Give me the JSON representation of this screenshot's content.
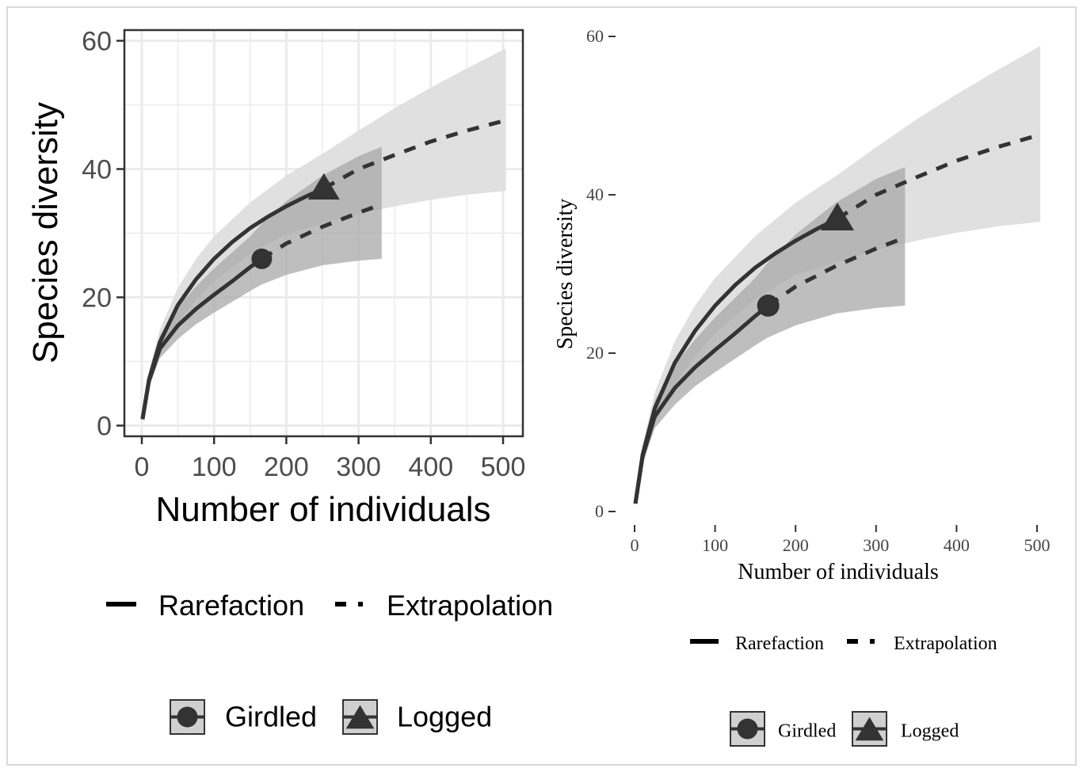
{
  "chart_data": [
    {
      "type": "line",
      "style": "ggplot-grey",
      "xlabel": "Number of individuals",
      "ylabel": "Species diversity",
      "xlim": [
        0,
        500
      ],
      "ylim": [
        0,
        60
      ],
      "x_ticks": [
        "0",
        "100",
        "200",
        "300",
        "400",
        "500"
      ],
      "y_ticks": [
        "0",
        "20",
        "40",
        "60"
      ],
      "grid": true,
      "legend_placement": "bottom",
      "linetype_legend": [
        {
          "label": "Rarefaction",
          "linetype": "solid"
        },
        {
          "label": "Extrapolation",
          "linetype": "dashed"
        }
      ],
      "shape_legend": [
        {
          "label": "Girdled",
          "shape": "circle"
        },
        {
          "label": "Logged",
          "shape": "triangle"
        }
      ],
      "series": [
        {
          "name": "Girdled",
          "observed": {
            "x": 166,
            "y": 26
          },
          "rarefaction": {
            "x": [
              1,
              10,
              25,
              50,
              75,
              100,
              125,
              150,
              166
            ],
            "y": [
              1,
              7,
              12,
              15.6,
              18.2,
              20.4,
              22.5,
              24.7,
              26
            ]
          },
          "extrapolation": {
            "x": [
              166,
              200,
              250,
              300,
              332
            ],
            "y": [
              26,
              28.4,
              31,
              33.2,
              34.5
            ]
          },
          "ci_upper": {
            "x": [
              1,
              10,
              25,
              50,
              75,
              100,
              125,
              150,
              166,
              200,
              250,
              300,
              332
            ],
            "y": [
              1,
              8,
              14,
              18.5,
              21.7,
              24.5,
              27,
              29.5,
              31.5,
              35,
              39,
              42,
              43.5
            ]
          },
          "ci_lower": {
            "x": [
              1,
              10,
              25,
              50,
              75,
              100,
              125,
              150,
              166,
              200,
              250,
              300,
              332
            ],
            "y": [
              1,
              6,
              10.5,
              13.5,
              15.8,
              17.6,
              19.3,
              21,
              22,
              23.5,
              25,
              25.7,
              26
            ]
          }
        },
        {
          "name": "Logged",
          "observed": {
            "x": 252,
            "y": 37
          },
          "rarefaction": {
            "x": [
              1,
              10,
              25,
              50,
              75,
              100,
              125,
              150,
              175,
              200,
              225,
              252
            ],
            "y": [
              1,
              7.2,
              13,
              18.8,
              22.8,
              26,
              28.6,
              30.8,
              32.6,
              34.2,
              35.6,
              37
            ]
          },
          "extrapolation": {
            "x": [
              252,
              300,
              350,
              400,
              450,
              504
            ],
            "y": [
              37,
              40,
              42.2,
              44.3,
              46,
              47.6
            ]
          },
          "ci_upper": {
            "x": [
              1,
              10,
              25,
              50,
              75,
              100,
              150,
              200,
              252,
              300,
              350,
              400,
              450,
              504
            ],
            "y": [
              1,
              8.5,
              15,
              21.5,
              26,
              29.5,
              34.8,
              39,
              42.5,
              46,
              49.5,
              52.7,
              55.7,
              58.8
            ]
          },
          "ci_lower": {
            "x": [
              1,
              10,
              25,
              50,
              75,
              100,
              150,
              200,
              252,
              300,
              350,
              400,
              450,
              504
            ],
            "y": [
              1,
              6,
              11,
              16,
              19.6,
              22.5,
              26.8,
              29.9,
              31.5,
              33,
              34.2,
              35.2,
              36,
              36.6
            ]
          }
        }
      ]
    },
    {
      "type": "line",
      "style": "classic",
      "xlabel": "Number of individuals",
      "ylabel": "Species diversity",
      "xlim": [
        0,
        500
      ],
      "ylim": [
        0,
        60
      ],
      "x_ticks": [
        "0",
        "100",
        "200",
        "300",
        "400",
        "500"
      ],
      "y_ticks": [
        "0",
        "20",
        "40",
        "60"
      ],
      "grid": false,
      "legend_placement": "bottom",
      "linetype_legend": [
        {
          "label": "Rarefaction",
          "linetype": "solid"
        },
        {
          "label": "Extrapolation",
          "linetype": "dashed"
        }
      ],
      "shape_legend": [
        {
          "label": "Girdled",
          "shape": "circle"
        },
        {
          "label": "Logged",
          "shape": "triangle"
        }
      ],
      "series": [
        {
          "name": "Girdled",
          "observed": {
            "x": 166,
            "y": 26
          },
          "rarefaction": {
            "x": [
              1,
              10,
              25,
              50,
              75,
              100,
              125,
              150,
              166
            ],
            "y": [
              1,
              7,
              12,
              15.6,
              18.2,
              20.4,
              22.5,
              24.7,
              26
            ]
          },
          "extrapolation": {
            "x": [
              166,
              200,
              250,
              300,
              336
            ],
            "y": [
              26,
              28.4,
              31,
              33.2,
              34.6
            ]
          },
          "ci_upper": {
            "x": [
              1,
              10,
              25,
              50,
              75,
              100,
              125,
              150,
              166,
              200,
              250,
              300,
              336
            ],
            "y": [
              1,
              8,
              14,
              18.5,
              21.7,
              24.5,
              27,
              29.5,
              31.5,
              35,
              39,
              42,
              43.5
            ]
          },
          "ci_lower": {
            "x": [
              1,
              10,
              25,
              50,
              75,
              100,
              125,
              150,
              166,
              200,
              250,
              300,
              336
            ],
            "y": [
              1,
              6,
              10.5,
              13.5,
              15.8,
              17.6,
              19.3,
              21,
              22,
              23.5,
              25,
              25.7,
              26
            ]
          }
        },
        {
          "name": "Logged",
          "observed": {
            "x": 252,
            "y": 37
          },
          "rarefaction": {
            "x": [
              1,
              10,
              25,
              50,
              75,
              100,
              125,
              150,
              175,
              200,
              225,
              252
            ],
            "y": [
              1,
              7.2,
              13,
              18.8,
              22.8,
              26,
              28.6,
              30.8,
              32.6,
              34.2,
              35.6,
              37
            ]
          },
          "extrapolation": {
            "x": [
              252,
              300,
              350,
              400,
              450,
              504
            ],
            "y": [
              37,
              40,
              42.2,
              44.3,
              46,
              47.6
            ]
          },
          "ci_upper": {
            "x": [
              1,
              10,
              25,
              50,
              75,
              100,
              150,
              200,
              252,
              300,
              350,
              400,
              450,
              504
            ],
            "y": [
              1,
              8.5,
              15,
              21.5,
              26,
              29.5,
              34.8,
              39,
              42.5,
              46,
              49.5,
              52.7,
              55.7,
              58.8
            ]
          },
          "ci_lower": {
            "x": [
              1,
              10,
              25,
              50,
              75,
              100,
              150,
              200,
              252,
              300,
              350,
              400,
              450,
              504
            ],
            "y": [
              1,
              6,
              11,
              16,
              19.6,
              22.5,
              26.8,
              29.9,
              31.5,
              33,
              34.2,
              35.2,
              36,
              36.6
            ]
          }
        }
      ]
    }
  ],
  "colors": {
    "line": "#333333",
    "ci_logged": "#e0e0e0",
    "ci_girdled": "#a8a8a8",
    "panel_grid": "#ebebeb",
    "legend_key_bg": "#d0d0d0"
  }
}
